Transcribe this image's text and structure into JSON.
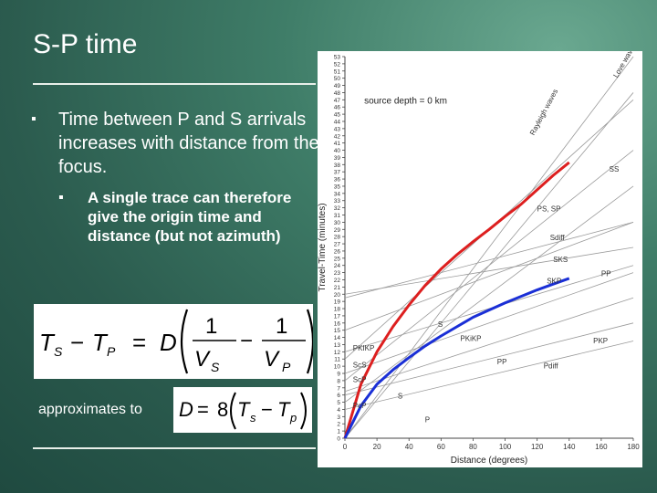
{
  "slide": {
    "title": "S-P time",
    "bullet1": "Time between P and S arrivals increases with distance from the focus.",
    "bullet2": "A single trace can therefore give the origin time and distance (but not azimuth)",
    "approx_label": "approximates to",
    "bullet_glyph": "▪"
  },
  "equations": {
    "eq1": {
      "lhs_a": "T",
      "lhs_a_sub": "S",
      "minus": "−",
      "lhs_b": "T",
      "lhs_b_sub": "P",
      "equals": "=",
      "D": "D",
      "num1": "1",
      "den1": "V",
      "den1_sub": "S",
      "num2": "1",
      "den2": "V",
      "den2_sub": "P"
    },
    "eq2": {
      "D": "D",
      "equals": "=",
      "eight": "8",
      "Ta": "T",
      "Ta_sub": "s",
      "minus": "−",
      "Tb": "T",
      "Tb_sub": "p"
    }
  },
  "chart_data": {
    "type": "line",
    "title": "source depth = 0 km",
    "xlabel": "Distance (degrees)",
    "ylabel": "Travel-Time (minutes)",
    "xlim": [
      0,
      180
    ],
    "ylim": [
      0,
      53
    ],
    "x_ticks": [
      0,
      20,
      40,
      60,
      80,
      100,
      120,
      140,
      160,
      180
    ],
    "y_ticks": [
      0,
      1,
      2,
      3,
      4,
      5,
      6,
      7,
      8,
      9,
      10,
      11,
      12,
      13,
      14,
      15,
      16,
      17,
      18,
      19,
      20,
      21,
      22,
      23,
      24,
      25,
      26,
      27,
      28,
      29,
      30,
      31,
      32,
      33,
      34,
      35,
      36,
      37,
      38,
      39,
      40,
      41,
      42,
      43,
      44,
      45,
      46,
      47,
      48,
      49,
      50,
      51,
      52,
      53
    ],
    "phase_labels": [
      "Love waves",
      "Rayleigh waves",
      "SS",
      "PS, SP",
      "Sdiff",
      "SKS",
      "PP",
      "SKP",
      "S",
      "PKiKP",
      "PKP",
      "PKIKP",
      "ScS",
      "ScP",
      "PP",
      "Pdiff",
      "S",
      "PcP",
      "P"
    ],
    "highlight_series": [
      {
        "name": "S",
        "color": "#dd1f1f",
        "x": [
          0,
          10,
          20,
          30,
          40,
          50,
          60,
          70,
          80,
          90,
          100,
          110,
          120,
          130,
          140
        ],
        "y": [
          0,
          7.5,
          12,
          15.5,
          18.5,
          21.2,
          23.5,
          25.5,
          27.3,
          29,
          30.8,
          32.5,
          34.5,
          36.5,
          38.3
        ]
      },
      {
        "name": "P",
        "color": "#1a2fd6",
        "x": [
          0,
          10,
          20,
          30,
          40,
          50,
          60,
          70,
          80,
          90,
          100,
          110,
          120,
          130,
          140
        ],
        "y": [
          0,
          4.5,
          7.5,
          9.5,
          11.2,
          12.8,
          14.2,
          15.5,
          16.8,
          17.8,
          18.8,
          19.7,
          20.6,
          21.4,
          22.2
        ]
      }
    ],
    "background_series": [
      {
        "x": [
          0,
          180
        ],
        "y": [
          0,
          53
        ]
      },
      {
        "x": [
          0,
          180
        ],
        "y": [
          0,
          48
        ]
      },
      {
        "x": [
          0,
          180
        ],
        "y": [
          11,
          47
        ]
      },
      {
        "x": [
          0,
          180
        ],
        "y": [
          8,
          40
        ]
      },
      {
        "x": [
          0,
          180
        ],
        "y": [
          5,
          35
        ]
      },
      {
        "x": [
          0,
          180
        ],
        "y": [
          15,
          30
        ]
      },
      {
        "x": [
          0,
          180
        ],
        "y": [
          19.5,
          30
        ]
      },
      {
        "x": [
          0,
          180
        ],
        "y": [
          20,
          26.5
        ]
      },
      {
        "x": [
          0,
          180
        ],
        "y": [
          12,
          24
        ]
      },
      {
        "x": [
          0,
          180
        ],
        "y": [
          9,
          23
        ]
      },
      {
        "x": [
          0,
          180
        ],
        "y": [
          6.5,
          19.5
        ]
      },
      {
        "x": [
          0,
          180
        ],
        "y": [
          6,
          16
        ]
      },
      {
        "x": [
          0,
          180
        ],
        "y": [
          4,
          13.5
        ]
      }
    ],
    "grid": false,
    "legend": "none"
  }
}
